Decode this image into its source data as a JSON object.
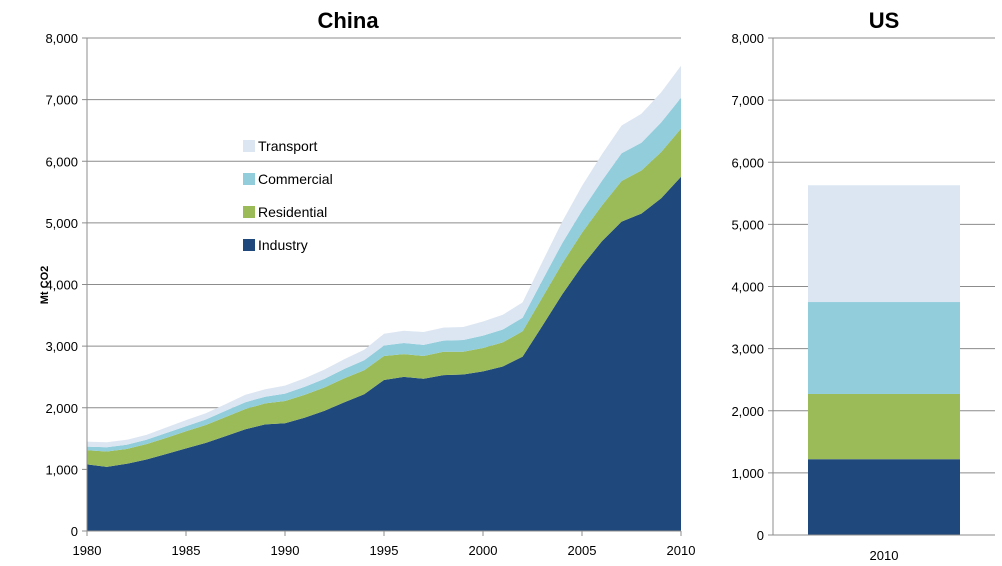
{
  "chart_data": [
    {
      "type": "area",
      "stacked": true,
      "title": "China",
      "ylabel": "Mt CO2",
      "xlabel": "",
      "ylim": [
        0,
        8000
      ],
      "yticks": [
        0,
        1000,
        2000,
        3000,
        4000,
        5000,
        6000,
        7000,
        8000
      ],
      "ytick_labels": [
        "0",
        "1,000",
        "2,000",
        "3,000",
        "4,000",
        "5,000",
        "6,000",
        "7,000",
        "8,000"
      ],
      "xlim": [
        1980,
        2010
      ],
      "xticks": [
        1980,
        1985,
        1990,
        1995,
        2000,
        2005,
        2010
      ],
      "xtick_labels": [
        "1980",
        "1985",
        "1990",
        "1995",
        "2000",
        "2005",
        "2010"
      ],
      "grid": true,
      "legend": "inside-upper-left",
      "legend_order": [
        "Transport",
        "Commercial",
        "Residential",
        "Industry"
      ],
      "x": [
        1980,
        1981,
        1982,
        1983,
        1984,
        1985,
        1986,
        1987,
        1988,
        1989,
        1990,
        1991,
        1992,
        1993,
        1994,
        1995,
        1996,
        1997,
        1998,
        1999,
        2000,
        2001,
        2002,
        2003,
        2004,
        2005,
        2006,
        2007,
        2008,
        2009,
        2010
      ],
      "series": [
        {
          "name": "Industry",
          "color": "#1f497d",
          "values": [
            1080,
            1040,
            1090,
            1160,
            1250,
            1340,
            1430,
            1540,
            1650,
            1730,
            1750,
            1840,
            1950,
            2090,
            2220,
            2450,
            2500,
            2470,
            2530,
            2540,
            2590,
            2670,
            2830,
            3330,
            3840,
            4300,
            4700,
            5020,
            5150,
            5400,
            5750
          ]
        },
        {
          "name": "Residential",
          "color": "#9bbb59",
          "values": [
            230,
            250,
            240,
            250,
            260,
            280,
            290,
            310,
            330,
            340,
            360,
            370,
            380,
            390,
            390,
            390,
            370,
            370,
            380,
            370,
            380,
            390,
            410,
            460,
            500,
            540,
            580,
            660,
            700,
            750,
            780
          ]
        },
        {
          "name": "Commercial",
          "color": "#92cddc",
          "values": [
            60,
            70,
            70,
            70,
            80,
            80,
            90,
            100,
            110,
            110,
            120,
            130,
            140,
            150,
            160,
            170,
            180,
            180,
            180,
            190,
            200,
            210,
            220,
            280,
            330,
            360,
            400,
            450,
            450,
            480,
            500
          ]
        },
        {
          "name": "Transport",
          "color": "#dce6f2",
          "values": [
            80,
            80,
            80,
            80,
            90,
            100,
            100,
            110,
            120,
            120,
            130,
            140,
            150,
            160,
            170,
            190,
            200,
            210,
            210,
            210,
            230,
            240,
            250,
            300,
            350,
            400,
            430,
            450,
            470,
            490,
            520
          ]
        }
      ]
    },
    {
      "type": "bar",
      "stacked": true,
      "title": "US",
      "ylim": [
        0,
        8000
      ],
      "yticks": [
        0,
        1000,
        2000,
        3000,
        4000,
        5000,
        6000,
        7000,
        8000
      ],
      "ytick_labels": [
        "0",
        "1,000",
        "2,000",
        "3,000",
        "4,000",
        "5,000",
        "6,000",
        "7,000",
        "8,000"
      ],
      "categories": [
        "2010"
      ],
      "grid": true,
      "series": [
        {
          "name": "Industry",
          "color": "#1f497d",
          "values": [
            1220
          ]
        },
        {
          "name": "Residential",
          "color": "#9bbb59",
          "values": [
            1050
          ]
        },
        {
          "name": "Commercial",
          "color": "#92cddc",
          "values": [
            1480
          ]
        },
        {
          "name": "Transport",
          "color": "#dce6f2",
          "values": [
            1880
          ]
        }
      ]
    }
  ]
}
